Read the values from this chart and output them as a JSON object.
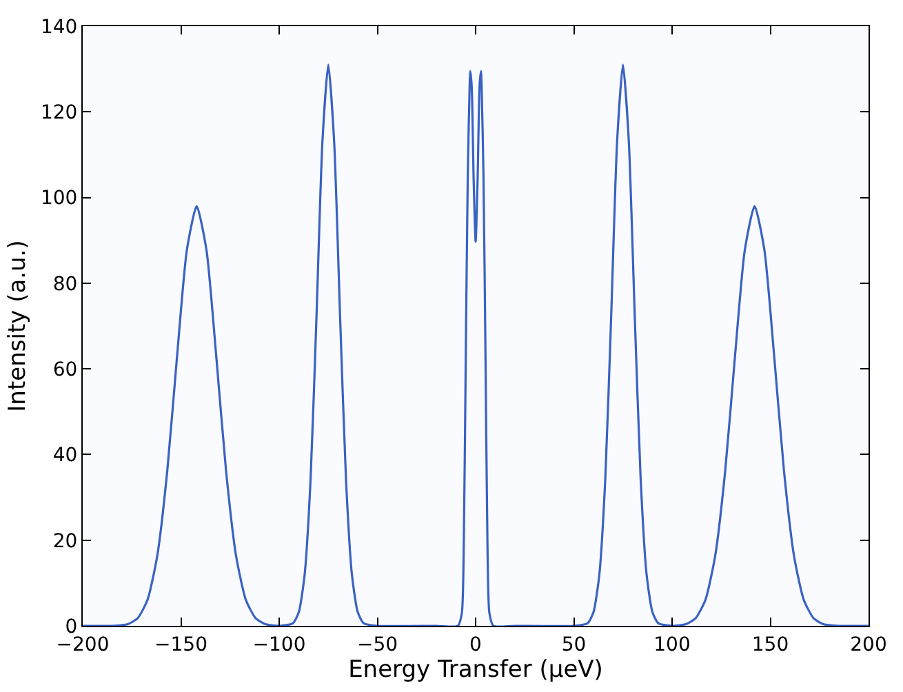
{
  "chart_data": {
    "type": "line",
    "xlabel": "Energy Transfer (μeV)",
    "ylabel": "Intensity (a.u.)",
    "xlim": [
      -200,
      200
    ],
    "xticks": [
      {
        "value": -200,
        "label": "−200"
      },
      {
        "value": -150,
        "label": "−150"
      },
      {
        "value": -100,
        "label": "−100"
      },
      {
        "value": -50,
        "label": "−50"
      },
      0,
      50,
      100,
      150,
      200
    ],
    "ylim": [
      0,
      140
    ],
    "yticks": [
      0,
      20,
      40,
      60,
      80,
      100,
      120,
      140
    ],
    "marker": "none",
    "line_style": "solid",
    "series": [
      {
        "color": "#3a62c4",
        "x": [
          -200,
          -185,
          -177,
          -172,
          -167,
          -162,
          -157,
          -152,
          -147,
          -142,
          -137,
          -132,
          -127,
          -122,
          -117,
          -112,
          -107,
          -100,
          -93,
          -90,
          -87,
          -84,
          -81,
          -78,
          -75,
          -72,
          -69,
          -66,
          -63,
          -60,
          -57,
          -50,
          -20,
          -9,
          -7,
          -6,
          -5,
          -4,
          -3,
          -2.7,
          -2,
          -1,
          0,
          1,
          2,
          2.7,
          3,
          4,
          5,
          6,
          7,
          9,
          20,
          50,
          57,
          60,
          63,
          66,
          69,
          72,
          75,
          78,
          81,
          84,
          87,
          90,
          93,
          100,
          107,
          112,
          117,
          122,
          127,
          132,
          137,
          142,
          147,
          152,
          157,
          162,
          167,
          172,
          177,
          185,
          200
        ],
        "values": [
          0,
          0,
          0.4,
          1.8,
          6.1,
          16.5,
          36.0,
          62.8,
          87.7,
          98,
          87.7,
          62.8,
          36.0,
          16.5,
          6.1,
          1.8,
          0.4,
          0,
          0.6,
          3.2,
          12.1,
          34.3,
          72.3,
          112.9,
          131,
          112.9,
          72.3,
          34.3,
          12.1,
          3.2,
          0.6,
          0,
          0,
          0,
          3,
          20,
          64,
          105,
          127,
          129.5,
          126,
          104,
          89.7,
          104,
          126,
          129.5,
          127,
          105,
          64,
          20,
          3,
          0,
          0,
          0,
          0.6,
          3.2,
          12.1,
          34.3,
          72.3,
          112.9,
          131,
          112.9,
          72.3,
          34.3,
          12.1,
          3.2,
          0.6,
          0,
          0.4,
          1.8,
          6.1,
          16.5,
          36.0,
          62.8,
          87.7,
          98,
          87.7,
          62.8,
          36.0,
          16.5,
          6.1,
          1.8,
          0.4,
          0,
          0
        ]
      }
    ]
  }
}
